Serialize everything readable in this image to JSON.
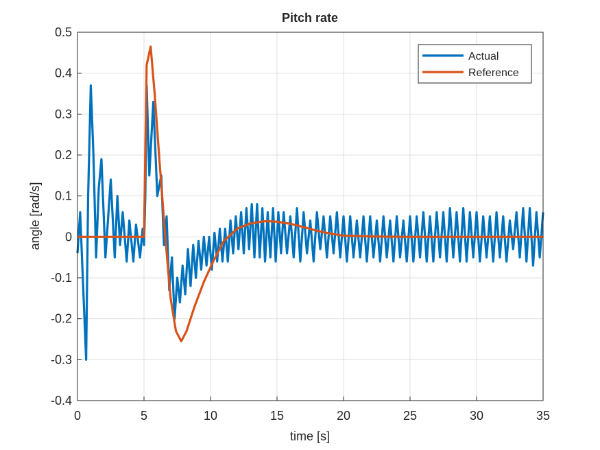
{
  "chart_data": {
    "type": "line",
    "title": "Pitch rate",
    "xlabel": "time [s]",
    "ylabel": "angle [rad/s]",
    "xlim": [
      0,
      35
    ],
    "xticks": [
      0,
      5,
      10,
      15,
      20,
      25,
      30,
      35
    ],
    "ylim": [
      -0.4,
      0.5
    ],
    "yticks": [
      -0.4,
      -0.3,
      -0.2,
      -0.1,
      0,
      0.1,
      0.2,
      0.3,
      0.4,
      0.5
    ],
    "grid": true,
    "legend": "top-right",
    "series": [
      {
        "name": "Actual",
        "color": "#0072BD",
        "x": [
          0,
          0.2,
          0.4,
          0.65,
          0.8,
          1.0,
          1.2,
          1.4,
          1.6,
          1.8,
          2.1,
          2.5,
          2.8,
          3.0,
          3.2,
          3.4,
          3.7,
          3.9,
          4.2,
          4.4,
          4.7,
          4.9,
          5.0,
          5.1,
          5.2,
          5.4,
          5.7,
          6.0,
          6.3,
          6.5,
          6.7,
          6.9,
          7.1,
          7.3,
          7.5,
          7.7,
          7.9,
          8.1,
          8.3,
          8.5,
          8.7,
          8.9,
          9.1,
          9.3,
          9.5,
          9.7,
          9.9,
          10.1,
          10.3,
          10.5,
          10.7,
          10.9,
          11.1,
          11.3,
          11.5,
          11.7,
          11.9,
          12.1,
          12.3,
          12.5,
          12.7,
          12.9,
          13.1,
          13.3,
          13.5,
          13.7,
          13.9,
          14.1,
          14.3,
          14.5,
          14.7,
          14.9,
          15.1,
          15.3,
          15.5,
          15.75,
          16,
          16.25,
          16.5,
          16.75,
          17,
          17.25,
          17.5,
          17.75,
          18,
          18.25,
          18.5,
          18.75,
          19,
          19.25,
          19.5,
          19.75,
          20,
          20.25,
          20.5,
          20.75,
          21,
          21.25,
          21.5,
          21.75,
          22,
          22.25,
          22.5,
          22.75,
          23,
          23.25,
          23.5,
          23.75,
          24,
          24.25,
          24.5,
          24.75,
          25,
          25.25,
          25.5,
          25.75,
          26,
          26.25,
          26.5,
          26.75,
          27,
          27.25,
          27.5,
          27.75,
          28,
          28.25,
          28.5,
          28.75,
          29,
          29.25,
          29.5,
          29.75,
          30,
          30.25,
          30.5,
          30.75,
          31,
          31.25,
          31.5,
          31.75,
          32,
          32.25,
          32.5,
          32.75,
          33,
          33.25,
          33.5,
          33.75,
          34,
          34.25,
          34.5,
          34.75,
          35
        ],
        "values": [
          -0.04,
          0.06,
          -0.1,
          -0.3,
          0.1,
          0.37,
          0.2,
          -0.05,
          0.12,
          0.19,
          -0.05,
          0.14,
          -0.05,
          0.1,
          -0.02,
          0.06,
          -0.06,
          0.04,
          -0.06,
          0.03,
          -0.05,
          0.02,
          -0.02,
          0.1,
          0.37,
          0.15,
          0.33,
          0.1,
          0.15,
          -0.02,
          0.05,
          -0.13,
          -0.05,
          -0.2,
          -0.1,
          -0.16,
          -0.07,
          -0.14,
          -0.03,
          -0.12,
          -0.02,
          -0.1,
          -0.01,
          -0.08,
          0,
          -0.07,
          0,
          -0.08,
          0.01,
          -0.06,
          0.02,
          -0.06,
          0.02,
          -0.06,
          0.04,
          -0.04,
          0.05,
          -0.03,
          0.06,
          -0.04,
          0.07,
          -0.03,
          0.08,
          -0.05,
          0.08,
          -0.05,
          0.07,
          -0.06,
          0.06,
          -0.05,
          0.07,
          -0.06,
          0.06,
          -0.04,
          0.06,
          -0.04,
          0.05,
          -0.05,
          0.07,
          -0.06,
          0.06,
          -0.04,
          0.04,
          -0.06,
          0.06,
          -0.03,
          0.05,
          -0.05,
          0.05,
          -0.04,
          0.06,
          -0.05,
          0.05,
          -0.06,
          0.05,
          -0.05,
          0.04,
          -0.05,
          0.05,
          -0.06,
          0.05,
          -0.05,
          0.04,
          -0.06,
          0.05,
          -0.05,
          0.04,
          -0.06,
          0.05,
          -0.05,
          0.04,
          -0.06,
          0.05,
          -0.06,
          0.05,
          -0.05,
          0.06,
          -0.06,
          0.05,
          -0.06,
          0.06,
          -0.05,
          0.06,
          -0.06,
          0.07,
          -0.05,
          0.06,
          -0.06,
          0.07,
          -0.06,
          0.06,
          -0.05,
          0.06,
          -0.06,
          0.05,
          -0.05,
          0.05,
          -0.06,
          0.06,
          -0.05,
          0.05,
          -0.06,
          0.04,
          -0.03,
          0.06,
          -0.05,
          0.07,
          -0.06,
          0.07,
          -0.07,
          0.06,
          -0.05,
          0.06
        ]
      },
      {
        "name": "Reference",
        "color": "#D95319",
        "x": [
          0,
          5,
          5.2,
          5.5,
          5.8,
          6.2,
          6.6,
          7.0,
          7.4,
          7.8,
          8.2,
          8.8,
          9.5,
          10.2,
          11,
          12,
          13,
          14,
          14.5,
          15,
          16,
          17,
          18,
          19,
          20,
          22,
          25,
          35
        ],
        "values": [
          0,
          0,
          0.42,
          0.465,
          0.35,
          0.17,
          0,
          -0.15,
          -0.23,
          -0.255,
          -0.23,
          -0.17,
          -0.11,
          -0.06,
          -0.01,
          0.02,
          0.033,
          0.038,
          0.038,
          0.037,
          0.032,
          0.024,
          0.015,
          0.008,
          0.003,
          0.001,
          0,
          0
        ]
      }
    ]
  }
}
